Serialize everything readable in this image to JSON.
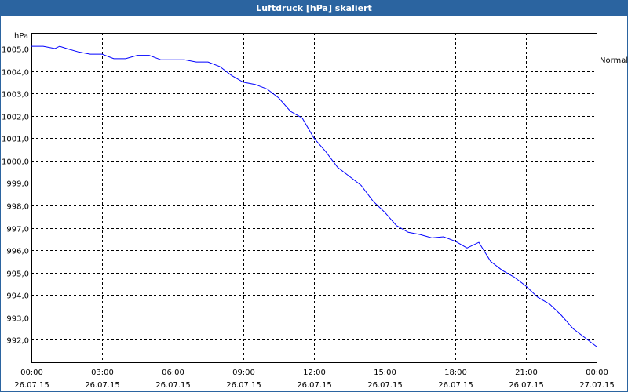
{
  "chart_data": {
    "type": "line",
    "title": "Luftdruck [hPa] skaliert",
    "y_unit": "hPa",
    "series": [
      {
        "name": "Normal",
        "color": "#0000ff",
        "x": [
          0,
          0.5,
          1,
          1.2,
          1.5,
          2,
          2.5,
          3,
          3.5,
          4,
          4.5,
          5,
          5.5,
          6,
          6.5,
          7,
          7.5,
          8,
          8.5,
          9,
          9.5,
          10,
          10.5,
          11,
          11.5,
          12,
          12.5,
          13,
          13.5,
          14,
          14.5,
          15,
          15.5,
          16,
          16.5,
          17,
          17.5,
          18,
          18.5,
          19,
          19.5,
          20,
          20.5,
          21,
          21.5,
          22,
          22.5,
          23,
          23.5,
          24
        ],
        "values": [
          1005.1,
          1005.1,
          1005.0,
          1005.1,
          1005.0,
          1004.85,
          1004.75,
          1004.75,
          1004.55,
          1004.55,
          1004.7,
          1004.7,
          1004.5,
          1004.5,
          1004.5,
          1004.4,
          1004.4,
          1004.2,
          1003.8,
          1003.5,
          1003.4,
          1003.2,
          1002.8,
          1002.2,
          1001.9,
          1001.0,
          1000.4,
          999.7,
          999.3,
          998.9,
          998.2,
          997.7,
          997.1,
          996.8,
          996.7,
          996.55,
          996.6,
          996.4,
          996.1,
          996.35,
          995.5,
          995.1,
          994.8,
          994.4,
          993.9,
          993.6,
          993.1,
          992.5,
          992.1,
          991.7
        ]
      }
    ],
    "xlim": [
      0,
      24
    ],
    "xticks": [
      {
        "value": 0,
        "label": "00:00",
        "date": "26.07.15"
      },
      {
        "value": 3,
        "label": "03:00",
        "date": "26.07.15"
      },
      {
        "value": 6,
        "label": "06:00",
        "date": "26.07.15"
      },
      {
        "value": 9,
        "label": "09:00",
        "date": "26.07.15"
      },
      {
        "value": 12,
        "label": "12:00",
        "date": "26.07.15"
      },
      {
        "value": 15,
        "label": "15:00",
        "date": "26.07.15"
      },
      {
        "value": 18,
        "label": "18:00",
        "date": "26.07.15"
      },
      {
        "value": 21,
        "label": "21:00",
        "date": "26.07.15"
      },
      {
        "value": 24,
        "label": "00:00",
        "date": "27.07.15"
      }
    ],
    "ylim": [
      991,
      1005.7
    ],
    "yticks": [
      {
        "value": 992,
        "label": "992,0"
      },
      {
        "value": 993,
        "label": "993,0"
      },
      {
        "value": 994,
        "label": "994,0"
      },
      {
        "value": 995,
        "label": "995,0"
      },
      {
        "value": 996,
        "label": "996,0"
      },
      {
        "value": 997,
        "label": "997,0"
      },
      {
        "value": 998,
        "label": "998,0"
      },
      {
        "value": 999,
        "label": "999,0"
      },
      {
        "value": 1000,
        "label": "1000,0"
      },
      {
        "value": 1001,
        "label": "1001,0"
      },
      {
        "value": 1002,
        "label": "1002,0"
      },
      {
        "value": 1003,
        "label": "1003,0"
      },
      {
        "value": 1004,
        "label": "1004,0"
      },
      {
        "value": 1005,
        "label": "1005,0"
      }
    ],
    "grid": true
  }
}
